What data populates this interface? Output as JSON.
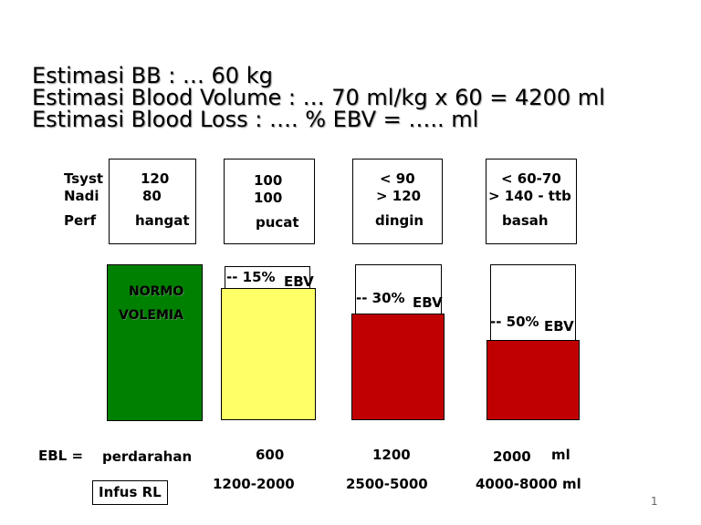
{
  "titles": {
    "line1": "Estimasi BB : … 60 kg",
    "line2": "Estimasi Blood Volume : … 70 ml/kg x 60 = 4200 ml",
    "line3": "Estimasi Blood Loss : …. % EBV  = ….. ml"
  },
  "row_labels": {
    "tsyst": "Tsyst",
    "nadi": "Nadi",
    "perf": "Perf"
  },
  "columns": [
    {
      "tsyst": "120",
      "nadi": "80",
      "perf": "hangat",
      "loss_label": "",
      "ebv": "",
      "ebl": "perdarahan",
      "infus": "",
      "loss_fraction": 0.0,
      "fill_color": "#008000"
    },
    {
      "tsyst": "100",
      "nadi": "100",
      "perf": "pucat",
      "loss_label": "-- 15%",
      "ebv": "EBV",
      "ebl": "600",
      "infus": "1200-2000",
      "loss_fraction": 0.15,
      "fill_color": "#ffff66"
    },
    {
      "tsyst": "<  90",
      "nadi": "> 120",
      "perf": "dingin",
      "loss_label": "-- 30%",
      "ebv": "EBV",
      "ebl": "1200",
      "infus": "2500-5000",
      "loss_fraction": 0.3,
      "fill_color": "#c00000"
    },
    {
      "tsyst": "< 60-70",
      "nadi": "> 140 - ttb",
      "perf": "basah",
      "loss_label": "-- 50%",
      "ebv": "EBV",
      "ebl": "2000",
      "ebl_unit": "ml",
      "infus": "4000-8000 ml",
      "loss_fraction": 0.5,
      "fill_color": "#c00000"
    }
  ],
  "normo": {
    "line1": "NORMO",
    "line2": "VOLEMIA"
  },
  "ebl_label": "EBL =",
  "infus_label": "Infus RL",
  "page_number": "1"
}
